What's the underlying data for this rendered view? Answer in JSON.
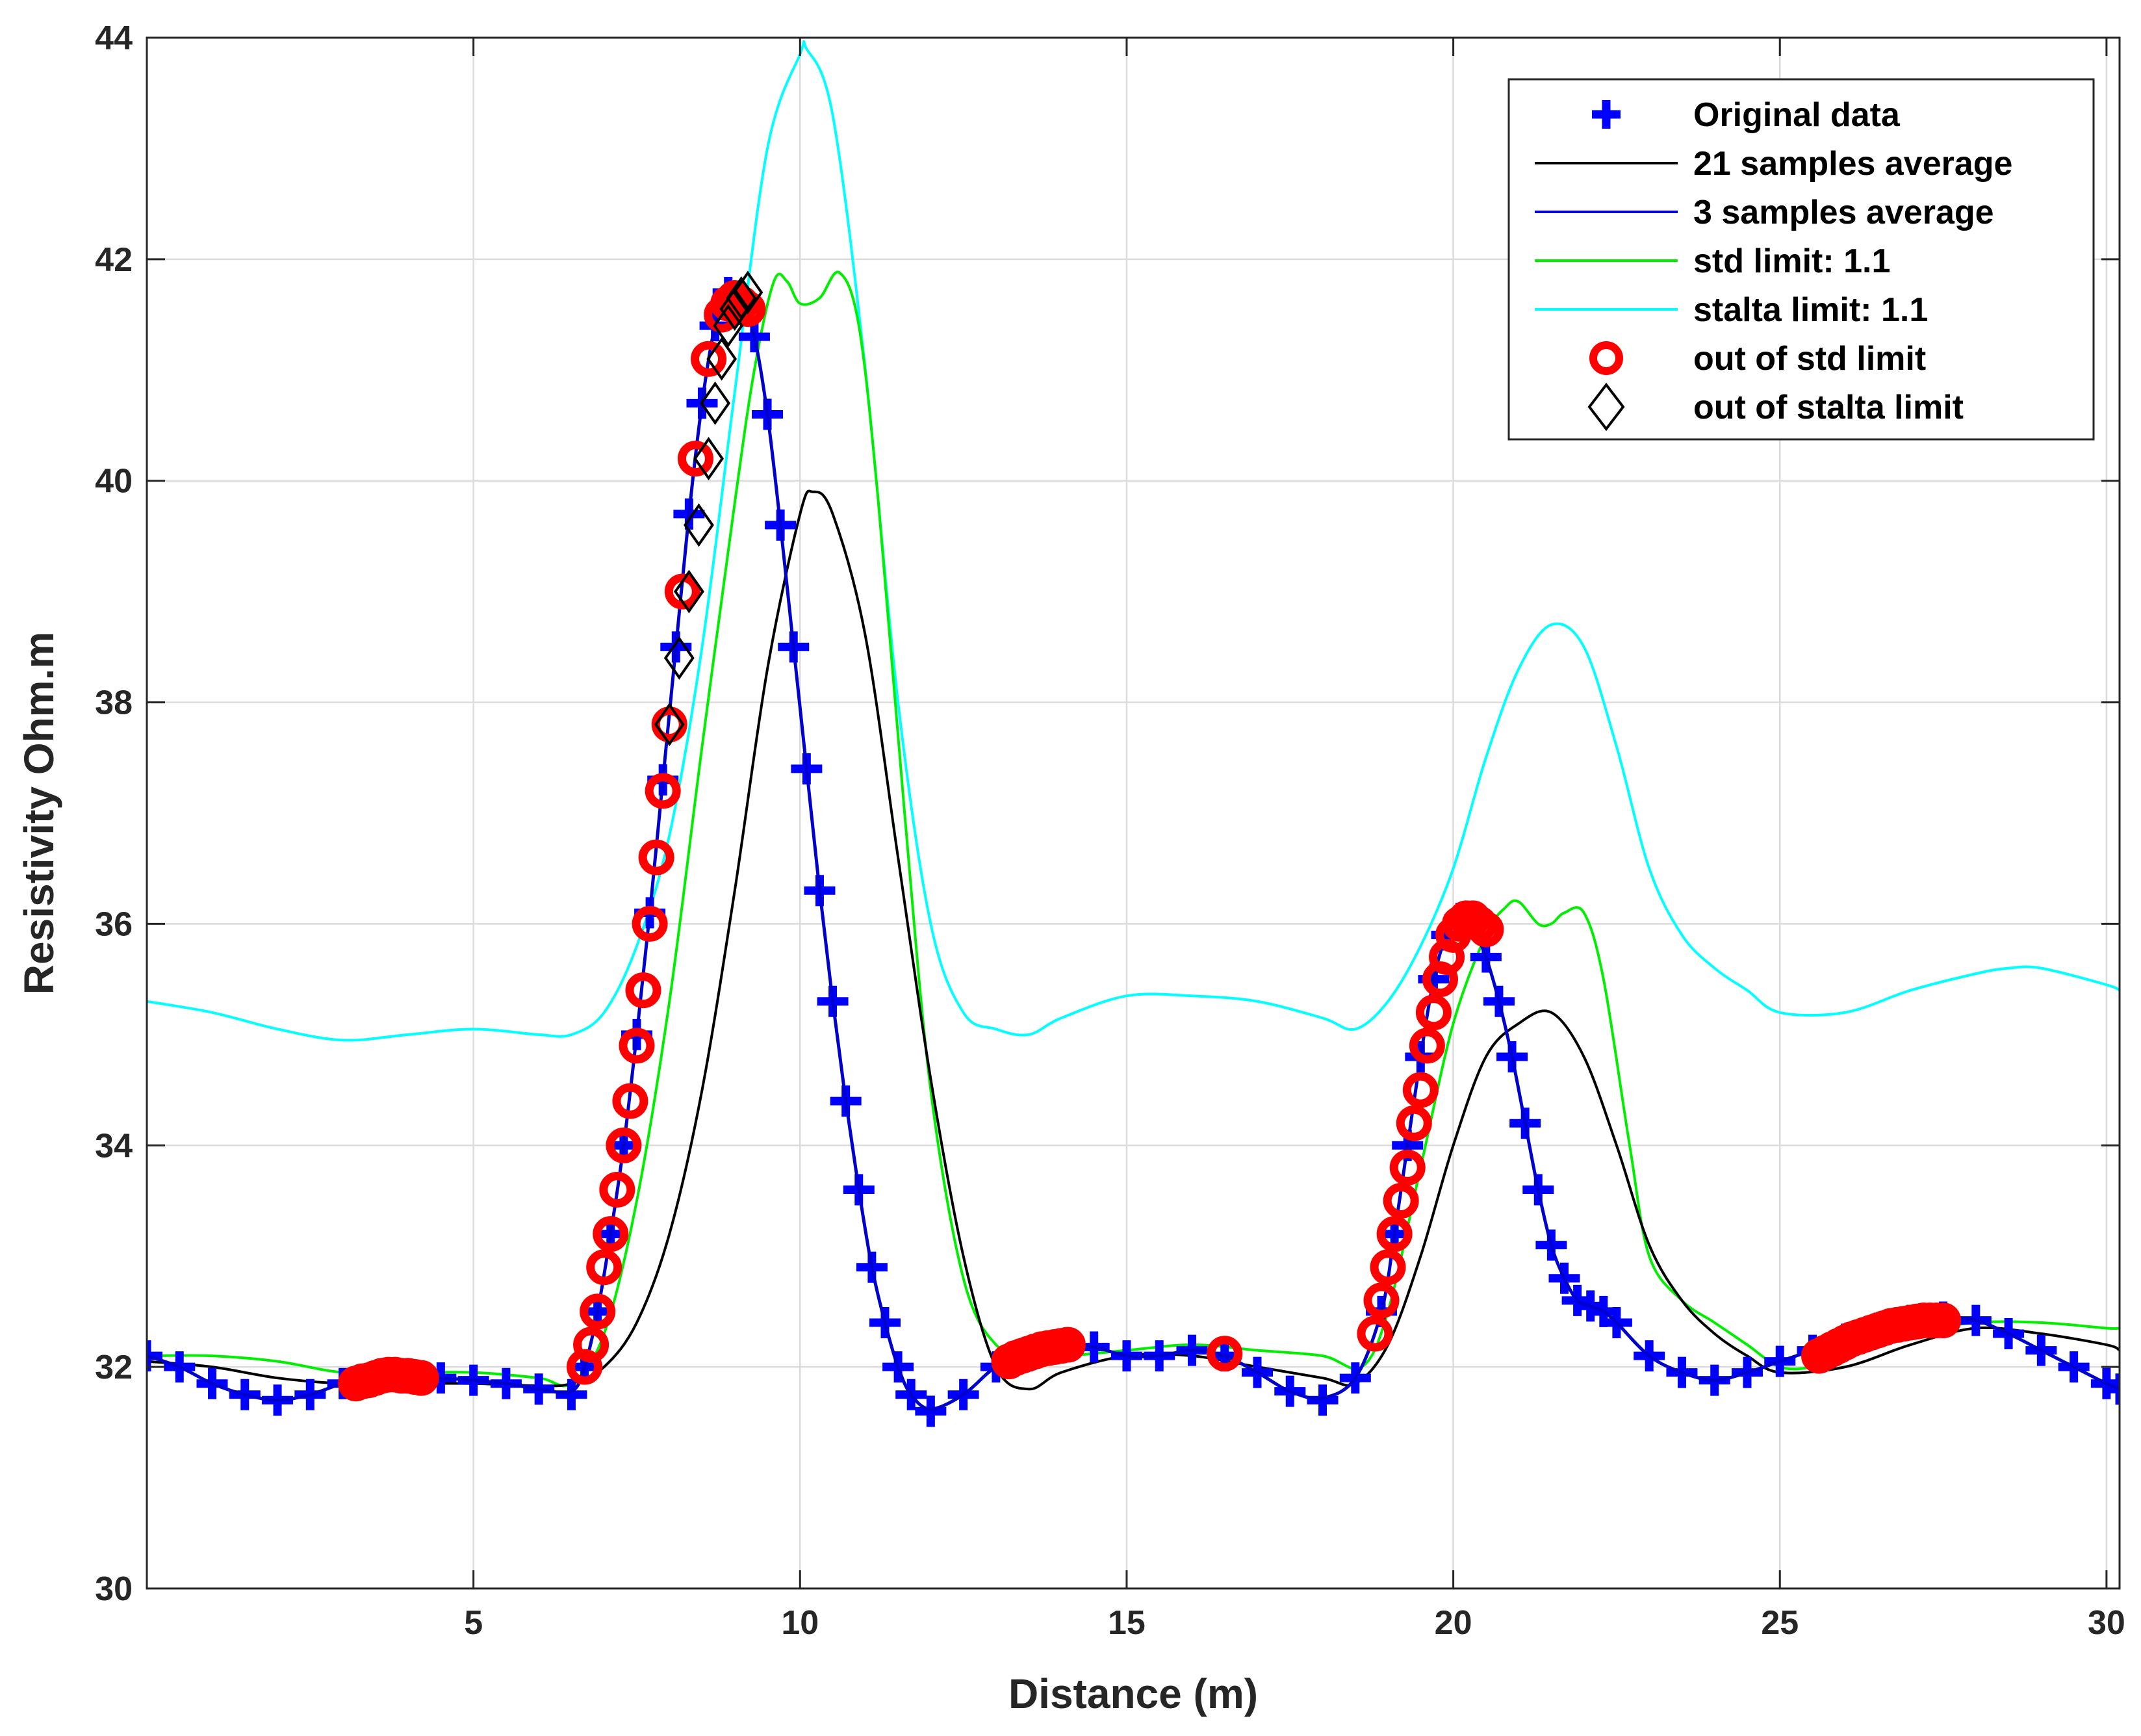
{
  "chart_data": {
    "type": "line",
    "xlabel": "Distance (m)",
    "ylabel": "Resistivity Ohm.m",
    "xlim": [
      0,
      30.2
    ],
    "ylim": [
      30,
      44
    ],
    "xticks": [
      5,
      10,
      15,
      20,
      25,
      30
    ],
    "yticks": [
      30,
      32,
      34,
      36,
      38,
      40,
      42,
      44
    ],
    "grid": true,
    "legend_position": "top-right",
    "series": [
      {
        "name": "Original data",
        "kind": "markers",
        "marker": "plus",
        "color": "#0000ff",
        "x": [
          0,
          0.5,
          1,
          1.5,
          2,
          2.5,
          3,
          3.5,
          4,
          4.5,
          5,
          5.5,
          6,
          6.5,
          6.7,
          6.9,
          7.1,
          7.3,
          7.5,
          7.7,
          7.9,
          8.1,
          8.3,
          8.5,
          8.7,
          8.9,
          9.1,
          9.3,
          9.5,
          9.7,
          9.9,
          10.1,
          10.3,
          10.5,
          10.7,
          10.9,
          11.1,
          11.3,
          11.5,
          11.7,
          12,
          12.5,
          13,
          13.5,
          14,
          14.5,
          15,
          15.5,
          16,
          16.5,
          17,
          17.5,
          18,
          18.5,
          18.9,
          19.1,
          19.3,
          19.5,
          19.7,
          19.9,
          20.1,
          20.3,
          20.5,
          20.7,
          20.9,
          21.1,
          21.3,
          21.5,
          21.7,
          21.9,
          22.1,
          22.3,
          22.5,
          23,
          23.5,
          24,
          24.5,
          25,
          25.5,
          26,
          26.5,
          27,
          27.5,
          28,
          28.5,
          29,
          29.5,
          30,
          30.2
        ],
        "y": [
          32.1,
          32.0,
          31.85,
          31.75,
          31.7,
          31.75,
          31.85,
          31.9,
          31.92,
          31.9,
          31.88,
          31.85,
          31.8,
          31.75,
          32.0,
          32.5,
          33.2,
          34.0,
          35.0,
          36.1,
          37.3,
          38.5,
          39.7,
          40.7,
          41.4,
          41.7,
          41.6,
          41.3,
          40.6,
          39.6,
          38.5,
          37.4,
          36.3,
          35.3,
          34.4,
          33.6,
          32.9,
          32.4,
          32.0,
          31.75,
          31.6,
          31.75,
          32.0,
          32.1,
          32.2,
          32.18,
          32.1,
          32.1,
          32.15,
          32.1,
          31.95,
          31.78,
          31.7,
          31.9,
          32.5,
          33.2,
          34.0,
          34.8,
          35.5,
          35.9,
          36.05,
          36.0,
          35.7,
          35.3,
          34.8,
          34.2,
          33.6,
          33.1,
          32.8,
          32.6,
          32.55,
          32.5,
          32.4,
          32.1,
          31.95,
          31.88,
          31.95,
          32.05,
          32.15,
          32.25,
          32.35,
          32.42,
          32.45,
          32.42,
          32.3,
          32.15,
          32.0,
          31.85,
          31.8
        ]
      },
      {
        "name": "21 samples average",
        "kind": "line",
        "color": "#000000",
        "x": [
          0,
          1,
          2,
          3,
          4,
          5,
          6,
          6.5,
          7,
          7.5,
          8,
          8.5,
          9,
          9.5,
          10,
          10.2,
          10.5,
          11,
          11.5,
          12,
          12.5,
          13,
          13.5,
          14,
          15,
          16,
          17,
          18,
          18.5,
          19,
          19.5,
          20,
          20.5,
          21,
          21.5,
          22,
          22.5,
          23,
          23.5,
          24,
          24.5,
          25,
          26,
          27,
          28,
          29,
          30,
          30.2
        ],
        "y": [
          32.05,
          32.0,
          31.9,
          31.85,
          31.85,
          31.85,
          31.83,
          31.85,
          32.0,
          32.4,
          33.2,
          34.5,
          36.3,
          38.3,
          39.7,
          39.9,
          39.7,
          38.6,
          36.6,
          34.6,
          33.0,
          32.0,
          31.8,
          31.95,
          32.1,
          32.1,
          32.0,
          31.9,
          31.85,
          32.2,
          33.0,
          34.0,
          34.8,
          35.1,
          35.2,
          34.8,
          34.0,
          33.1,
          32.6,
          32.3,
          32.1,
          31.95,
          32.0,
          32.2,
          32.35,
          32.3,
          32.2,
          32.15
        ]
      },
      {
        "name": "3 samples average",
        "kind": "line",
        "color": "#0000cc",
        "x": [
          0,
          0.5,
          1,
          1.5,
          2,
          2.5,
          3,
          3.5,
          4,
          4.5,
          5,
          5.5,
          6,
          6.5,
          6.7,
          6.9,
          7.1,
          7.3,
          7.5,
          7.7,
          7.9,
          8.1,
          8.3,
          8.5,
          8.7,
          8.9,
          9.1,
          9.3,
          9.5,
          9.7,
          9.9,
          10.1,
          10.3,
          10.5,
          10.7,
          10.9,
          11.1,
          11.3,
          11.5,
          11.7,
          12,
          12.5,
          13,
          13.5,
          14,
          14.5,
          15,
          15.5,
          16,
          16.5,
          17,
          17.5,
          18,
          18.5,
          18.9,
          19.1,
          19.3,
          19.5,
          19.7,
          19.9,
          20.1,
          20.3,
          20.5,
          20.7,
          20.9,
          21.1,
          21.3,
          21.5,
          21.7,
          21.9,
          22.1,
          22.3,
          22.5,
          23,
          23.5,
          24,
          24.5,
          25,
          25.5,
          26,
          26.5,
          27,
          27.5,
          28,
          28.5,
          29,
          29.5,
          30,
          30.2
        ],
        "y": [
          32.1,
          32.0,
          31.85,
          31.75,
          31.7,
          31.75,
          31.85,
          31.9,
          31.92,
          31.9,
          31.88,
          31.85,
          31.8,
          31.78,
          32.0,
          32.5,
          33.2,
          34.0,
          35.0,
          36.1,
          37.3,
          38.5,
          39.7,
          40.7,
          41.4,
          41.65,
          41.6,
          41.3,
          40.6,
          39.6,
          38.5,
          37.4,
          36.3,
          35.3,
          34.4,
          33.6,
          32.9,
          32.4,
          32.0,
          31.75,
          31.62,
          31.75,
          32.0,
          32.1,
          32.2,
          32.18,
          32.1,
          32.1,
          32.15,
          32.1,
          31.95,
          31.78,
          31.72,
          31.9,
          32.5,
          33.2,
          34.0,
          34.8,
          35.5,
          35.9,
          36.0,
          35.95,
          35.7,
          35.3,
          34.8,
          34.2,
          33.6,
          33.1,
          32.8,
          32.6,
          32.55,
          32.5,
          32.4,
          32.1,
          31.95,
          31.88,
          31.95,
          32.05,
          32.15,
          32.25,
          32.35,
          32.42,
          32.45,
          32.42,
          32.3,
          32.15,
          32.0,
          31.85,
          31.8
        ]
      },
      {
        "name": "std limit: 1.1",
        "kind": "line",
        "color": "#00ee00",
        "x": [
          0,
          1,
          2,
          3,
          4,
          5,
          6,
          6.5,
          7,
          7.5,
          8,
          8.5,
          9,
          9.3,
          9.6,
          9.8,
          10,
          10.3,
          10.6,
          10.9,
          11.2,
          11.6,
          12,
          12.5,
          13,
          13.5,
          14,
          15,
          16,
          17,
          18,
          18.6,
          19,
          19.5,
          20,
          20.5,
          20.8,
          21,
          21.3,
          21.5,
          21.7,
          22,
          22.3,
          22.7,
          23,
          23.5,
          24,
          24.5,
          25,
          25.5,
          26,
          27,
          28,
          29,
          30,
          30.2
        ],
        "y": [
          32.1,
          32.1,
          32.05,
          31.95,
          31.95,
          31.95,
          31.9,
          31.85,
          32.3,
          33.5,
          35.3,
          37.6,
          39.8,
          41.0,
          41.8,
          41.8,
          41.6,
          41.65,
          41.88,
          41.4,
          39.8,
          37.0,
          34.5,
          32.8,
          32.2,
          32.15,
          32.1,
          32.15,
          32.2,
          32.15,
          32.1,
          32.0,
          32.5,
          33.8,
          35.1,
          35.9,
          36.15,
          36.2,
          36.0,
          36.0,
          36.1,
          36.1,
          35.5,
          34.0,
          33.0,
          32.6,
          32.4,
          32.2,
          32.0,
          32.0,
          32.1,
          32.3,
          32.4,
          32.4,
          32.35,
          32.35
        ]
      },
      {
        "name": "stalta limit: 1.1",
        "kind": "line",
        "color": "#00ffff",
        "x": [
          0,
          1,
          2,
          3,
          4,
          5,
          6,
          6.5,
          7,
          7.5,
          8,
          8.5,
          9,
          9.5,
          10,
          10.1,
          10.5,
          11,
          11.5,
          12,
          12.5,
          13,
          13.5,
          14,
          15,
          16,
          17,
          18,
          18.5,
          19,
          19.5,
          20,
          20.5,
          21,
          21.5,
          22,
          22.5,
          23,
          23.5,
          24,
          24.5,
          25,
          26,
          27,
          28,
          28.5,
          29,
          30,
          30.2
        ],
        "y": [
          35.3,
          35.2,
          35.05,
          34.95,
          35.0,
          35.05,
          35.0,
          35.0,
          35.2,
          35.8,
          36.8,
          38.5,
          40.8,
          43.0,
          43.85,
          43.9,
          43.3,
          41.0,
          38.0,
          36.0,
          35.2,
          35.05,
          35.0,
          35.15,
          35.35,
          35.35,
          35.3,
          35.15,
          35.05,
          35.3,
          35.8,
          36.5,
          37.5,
          38.3,
          38.7,
          38.5,
          37.6,
          36.5,
          35.9,
          35.6,
          35.4,
          35.2,
          35.2,
          35.4,
          35.55,
          35.6,
          35.6,
          35.45,
          35.4
        ]
      },
      {
        "name": "out of std limit",
        "kind": "markers",
        "marker": "circle",
        "color": "#ff0000",
        "x": [
          3.2,
          3.3,
          3.4,
          3.5,
          3.6,
          3.7,
          3.8,
          3.9,
          4.0,
          4.1,
          4.2,
          6.7,
          6.8,
          6.9,
          7.0,
          7.1,
          7.2,
          7.3,
          7.4,
          7.5,
          7.6,
          7.7,
          7.8,
          7.9,
          8.0,
          8.2,
          8.4,
          8.6,
          8.8,
          8.9,
          9.0,
          9.1,
          9.2,
          13.2,
          13.3,
          13.4,
          13.5,
          13.6,
          13.7,
          13.8,
          13.9,
          14.0,
          14.1,
          16.5,
          18.8,
          18.9,
          19.0,
          19.1,
          19.2,
          19.3,
          19.4,
          19.5,
          19.6,
          19.7,
          19.8,
          19.9,
          20.0,
          20.1,
          20.2,
          20.3,
          20.4,
          20.5,
          25.6,
          25.7,
          25.8,
          25.9,
          26.0,
          26.1,
          26.2,
          26.3,
          26.4,
          26.5,
          26.6,
          26.7,
          26.8,
          26.9,
          27.0,
          27.1,
          27.2,
          27.3,
          27.4,
          27.5
        ],
        "y": [
          31.85,
          31.87,
          31.88,
          31.9,
          31.92,
          31.93,
          31.93,
          31.92,
          31.92,
          31.91,
          31.9,
          32.0,
          32.2,
          32.5,
          32.9,
          33.2,
          33.6,
          34.0,
          34.4,
          34.9,
          35.4,
          36.0,
          36.6,
          37.2,
          37.8,
          39.0,
          40.2,
          41.1,
          41.5,
          41.6,
          41.65,
          41.6,
          41.55,
          32.05,
          32.08,
          32.1,
          32.12,
          32.14,
          32.16,
          32.17,
          32.18,
          32.19,
          32.2,
          32.12,
          32.3,
          32.6,
          32.9,
          33.2,
          33.5,
          33.8,
          34.2,
          34.5,
          34.9,
          35.2,
          35.5,
          35.7,
          35.9,
          36.0,
          36.05,
          36.05,
          36.0,
          35.95,
          32.1,
          32.13,
          32.16,
          32.19,
          32.22,
          32.25,
          32.27,
          32.29,
          32.31,
          32.33,
          32.35,
          32.37,
          32.38,
          32.39,
          32.4,
          32.41,
          32.42,
          32.42,
          32.42,
          32.42
        ]
      },
      {
        "name": "out of stalta limit",
        "kind": "markers",
        "marker": "diamond",
        "color": "#000000",
        "x": [
          8.0,
          8.15,
          8.3,
          8.45,
          8.6,
          8.7,
          8.8,
          8.9,
          9.0,
          9.1,
          9.2
        ],
        "y": [
          37.8,
          38.4,
          39.0,
          39.6,
          40.2,
          40.7,
          41.1,
          41.4,
          41.55,
          41.65,
          41.7
        ]
      }
    ]
  }
}
